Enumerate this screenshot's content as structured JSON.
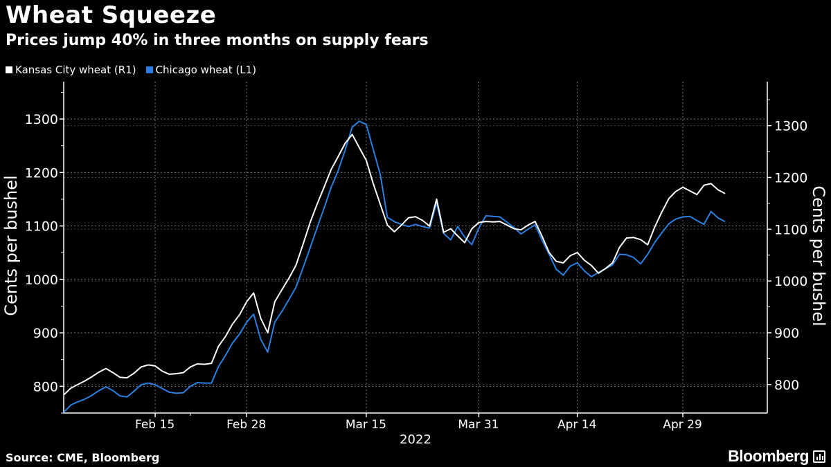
{
  "header": {
    "title": "Wheat Squeeze",
    "subtitle": "Prices jump 40% in three months on supply fears"
  },
  "footer": {
    "source": "Source: CME, Bloomberg",
    "logo": "Bloomberg"
  },
  "colors": {
    "background": "#000000",
    "kansas": "#ffffff",
    "chicago": "#2a7fe0",
    "grid": "#7a7a7a",
    "axis": "#ffffff"
  },
  "chart_data": {
    "type": "line",
    "title": "Wheat Squeeze",
    "subtitle": "Prices jump 40% in three months on supply fears",
    "xlabel": "2022",
    "x_ticks": [
      {
        "label": "Feb 15",
        "day": 13
      },
      {
        "label": "Feb 28",
        "day": 26
      },
      {
        "label": "Mar 15",
        "day": 43
      },
      {
        "label": "Mar 31",
        "day": 59
      },
      {
        "label": "Apr 14",
        "day": 73
      },
      {
        "label": "Apr 29",
        "day": 88
      }
    ],
    "x_range": [
      0,
      100
    ],
    "left_axis": {
      "label": "Cents per bushel",
      "ticks": [
        800,
        900,
        1000,
        1100,
        1200,
        1300
      ],
      "range": [
        750,
        1370
      ]
    },
    "right_axis": {
      "label": "Cents per bushel",
      "ticks": [
        800,
        900,
        1000,
        1100,
        1200,
        1300
      ],
      "range": [
        745,
        1385
      ]
    },
    "legend": [
      {
        "name": "Kansas City wheat (R1)",
        "color": "#ffffff"
      },
      {
        "name": "Chicago wheat (L1)",
        "color": "#2a7fe0"
      }
    ],
    "series": [
      {
        "name": "Chicago wheat (L1)",
        "axis": "left",
        "color": "#2a7fe0",
        "days": [
          0,
          1,
          2,
          3,
          4,
          5,
          6,
          7,
          8,
          9,
          10,
          11,
          12,
          13,
          14,
          15,
          16,
          17,
          18,
          19,
          20,
          21,
          22,
          23,
          24,
          25,
          26,
          27,
          28,
          29,
          30,
          31,
          32,
          33,
          34,
          35,
          36,
          37,
          38,
          39,
          40,
          41,
          42,
          43,
          44,
          45,
          46,
          47,
          48,
          49,
          50,
          51,
          52,
          53,
          54,
          55,
          56,
          57,
          58,
          59,
          60,
          61,
          62,
          63,
          64,
          65,
          66,
          67,
          68,
          69,
          70,
          71,
          72,
          73,
          74,
          75,
          76,
          77,
          78,
          79,
          80,
          81,
          82,
          83,
          84,
          85,
          86,
          87,
          88,
          89,
          90,
          91,
          92,
          93,
          94
        ],
        "values": [
          751,
          765,
          771,
          776,
          783,
          792,
          799,
          792,
          782,
          780,
          791,
          803,
          806,
          803,
          796,
          789,
          787,
          788,
          800,
          807,
          806,
          806,
          837,
          858,
          881,
          898,
          920,
          935,
          888,
          864,
          920,
          940,
          962,
          985,
          1021,
          1058,
          1096,
          1133,
          1172,
          1203,
          1242,
          1285,
          1296,
          1290,
          1243,
          1196,
          1116,
          1108,
          1103,
          1099,
          1103,
          1099,
          1096,
          1143,
          1086,
          1074,
          1099,
          1079,
          1065,
          1096,
          1119,
          1118,
          1117,
          1107,
          1097,
          1085,
          1094,
          1102,
          1073,
          1047,
          1019,
          1008,
          1025,
          1031,
          1016,
          1005,
          1013,
          1020,
          1027,
          1047,
          1046,
          1041,
          1029,
          1047,
          1069,
          1087,
          1104,
          1113,
          1117,
          1118,
          1110,
          1103,
          1127,
          1115,
          1108
        ]
      },
      {
        "name": "Kansas City wheat (R1)",
        "axis": "right",
        "color": "#ffffff",
        "days": [
          0,
          1,
          2,
          3,
          4,
          5,
          6,
          7,
          8,
          9,
          10,
          11,
          12,
          13,
          14,
          15,
          16,
          17,
          18,
          19,
          20,
          21,
          22,
          23,
          24,
          25,
          26,
          27,
          28,
          29,
          30,
          31,
          32,
          33,
          34,
          35,
          36,
          37,
          38,
          39,
          40,
          41,
          42,
          43,
          44,
          45,
          46,
          47,
          48,
          49,
          50,
          51,
          52,
          53,
          54,
          55,
          56,
          57,
          58,
          59,
          60,
          61,
          62,
          63,
          64,
          65,
          66,
          67,
          68,
          69,
          70,
          71,
          72,
          73,
          74,
          75,
          76,
          77,
          78,
          79,
          80,
          81,
          82,
          83,
          84,
          85,
          86,
          87,
          88,
          89,
          90,
          91,
          92,
          93,
          94
        ],
        "values": [
          780,
          793,
          800,
          807,
          815,
          824,
          831,
          823,
          814,
          813,
          822,
          834,
          838,
          836,
          826,
          820,
          821,
          823,
          834,
          840,
          839,
          841,
          874,
          893,
          917,
          935,
          960,
          977,
          928,
          900,
          960,
          983,
          1005,
          1030,
          1070,
          1112,
          1148,
          1181,
          1215,
          1240,
          1266,
          1283,
          1258,
          1233,
          1188,
          1148,
          1108,
          1095,
          1108,
          1122,
          1124,
          1117,
          1106,
          1158,
          1094,
          1101,
          1087,
          1074,
          1101,
          1113,
          1115,
          1114,
          1115,
          1108,
          1101,
          1099,
          1108,
          1115,
          1086,
          1055,
          1038,
          1035,
          1049,
          1055,
          1040,
          1030,
          1015,
          1024,
          1035,
          1065,
          1083,
          1084,
          1080,
          1070,
          1104,
          1133,
          1159,
          1173,
          1181,
          1174,
          1167,
          1185,
          1188,
          1176,
          1169
        ]
      }
    ]
  }
}
